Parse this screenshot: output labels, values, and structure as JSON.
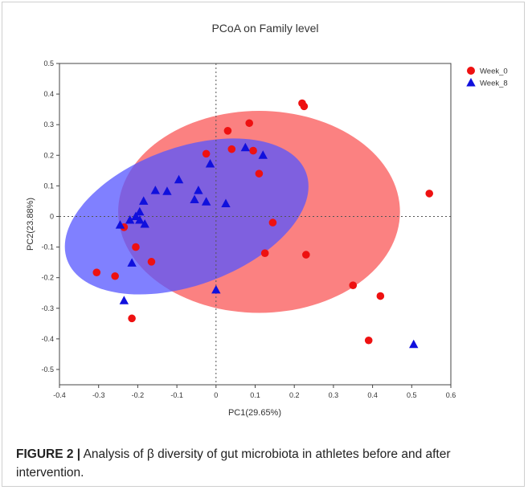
{
  "chart_data": {
    "type": "scatter",
    "title": "PCoA on Family level",
    "xlabel": "PC1(29.65%)",
    "ylabel": "PC2(23.88%)",
    "xlim": [
      -0.4,
      0.6
    ],
    "ylim": [
      -0.55,
      0.5
    ],
    "xticks": [
      -0.4,
      -0.3,
      -0.2,
      -0.1,
      0,
      0.1,
      0.2,
      0.3,
      0.4,
      0.5,
      0.6
    ],
    "xtick_labels": [
      "-0.4",
      "-0.3",
      "-0.2",
      "-0.1",
      "0",
      "0.1",
      "0.2",
      "0.3",
      "0.4",
      "0.5",
      "0.6"
    ],
    "yticks": [
      0.5,
      0.4,
      0.3,
      0.2,
      0.1,
      0,
      -0.1,
      -0.2,
      -0.3,
      -0.4,
      -0.5
    ],
    "ytick_labels": [
      "0.5",
      "0.4",
      "0.3",
      "0.2",
      "0.1",
      "0",
      "-0.1",
      "-0.2",
      "-0.3",
      "-0.4",
      "-0.5"
    ],
    "grid": false,
    "legend_position": "top-right",
    "reference_lines": {
      "x": 0,
      "y": 0,
      "style": "dotted"
    },
    "series": [
      {
        "name": "Week_0",
        "color": "#ee1111",
        "marker": "circle",
        "points": [
          [
            0.22,
            0.37
          ],
          [
            0.225,
            0.36
          ],
          [
            0.085,
            0.305
          ],
          [
            0.03,
            0.28
          ],
          [
            0.04,
            0.22
          ],
          [
            0.095,
            0.215
          ],
          [
            -0.025,
            0.205
          ],
          [
            0.11,
            0.14
          ],
          [
            0.545,
            0.075
          ],
          [
            0.145,
            -0.02
          ],
          [
            -0.235,
            -0.035
          ],
          [
            -0.205,
            -0.1
          ],
          [
            0.125,
            -0.12
          ],
          [
            0.23,
            -0.125
          ],
          [
            -0.165,
            -0.148
          ],
          [
            -0.305,
            -0.183
          ],
          [
            -0.258,
            -0.195
          ],
          [
            0.35,
            -0.225
          ],
          [
            0.42,
            -0.26
          ],
          [
            -0.215,
            -0.333
          ],
          [
            0.39,
            -0.405
          ]
        ],
        "ellipse": {
          "center": [
            0.11,
            0.015
          ],
          "rx": 0.36,
          "ry": 0.33,
          "fill": "#fb7a7a"
        }
      },
      {
        "name": "Week_8",
        "color": "#1010dd",
        "marker": "triangle",
        "points": [
          [
            0.075,
            0.225
          ],
          [
            0.12,
            0.2
          ],
          [
            -0.015,
            0.172
          ],
          [
            -0.095,
            0.12
          ],
          [
            -0.155,
            0.085
          ],
          [
            -0.125,
            0.082
          ],
          [
            -0.045,
            0.085
          ],
          [
            -0.185,
            0.05
          ],
          [
            -0.055,
            0.055
          ],
          [
            -0.025,
            0.048
          ],
          [
            0.025,
            0.042
          ],
          [
            -0.195,
            0.015
          ],
          [
            -0.205,
            0.0
          ],
          [
            -0.22,
            -0.012
          ],
          [
            -0.195,
            -0.012
          ],
          [
            -0.245,
            -0.028
          ],
          [
            -0.182,
            -0.025
          ],
          [
            -0.215,
            -0.152
          ],
          [
            0.0,
            -0.24
          ],
          [
            -0.235,
            -0.275
          ],
          [
            0.505,
            -0.418
          ]
        ],
        "ellipse": {
          "center": [
            -0.075,
            0.0
          ],
          "rx": 0.325,
          "ry": 0.225,
          "angle_deg": -20,
          "fill": "#5555ff"
        }
      }
    ]
  },
  "caption": {
    "figure_label": "FIGURE 2 |",
    "text": " Analysis of β diversity of gut microbiota in athletes before and after intervention."
  }
}
